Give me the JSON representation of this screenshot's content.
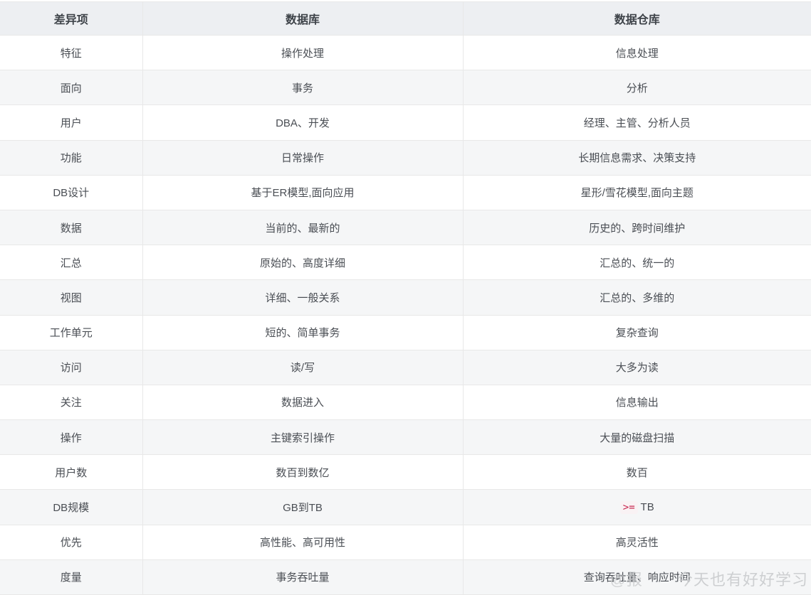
{
  "table": {
    "headers": [
      "差异项",
      "数据库",
      "数据仓库"
    ],
    "rows": [
      [
        "特征",
        "操作处理",
        "信息处理"
      ],
      [
        "面向",
        "事务",
        "分析"
      ],
      [
        "用户",
        "DBA、开发",
        "经理、主管、分析人员"
      ],
      [
        "功能",
        "日常操作",
        "长期信息需求、决策支持"
      ],
      [
        "DB设计",
        "基于ER模型,面向应用",
        "星形/雪花模型,面向主题"
      ],
      [
        "数据",
        "当前的、最新的",
        "历史的、跨时间维护"
      ],
      [
        "汇总",
        "原始的、高度详细",
        "汇总的、统一的"
      ],
      [
        "视图",
        "详细、一般关系",
        "汇总的、多维的"
      ],
      [
        "工作单元",
        "短的、简单事务",
        "复杂查询"
      ],
      [
        "访问",
        "读/写",
        "大多为读"
      ],
      [
        "关注",
        "数据进入",
        "信息输出"
      ],
      [
        "操作",
        "主键索引操作",
        "大量的磁盘扫描"
      ],
      [
        "用户数",
        "数百到数亿",
        "数百"
      ],
      [
        "DB规模",
        "GB到TB",
        {
          "code": ">=",
          "text": "TB"
        }
      ],
      [
        "优先",
        "高性能、高可用性",
        "高灵活性"
      ],
      [
        "度量",
        "事务吞吐量",
        "查询吞吐量、响应时间"
      ]
    ]
  },
  "watermark": {
    "prefix": "@报",
    "text": "今天也有好好学习"
  },
  "colors": {
    "header_bg": "#edeff2",
    "stripe_bg": "#f5f6f7",
    "row_bg": "#ffffff",
    "border": "#e8e8e8",
    "header_text": "#3e4349",
    "body_text": "#4a4e54",
    "code_text": "#c7254e",
    "code_bg": "#f9f2f4",
    "watermark": "#c9cbcd"
  }
}
